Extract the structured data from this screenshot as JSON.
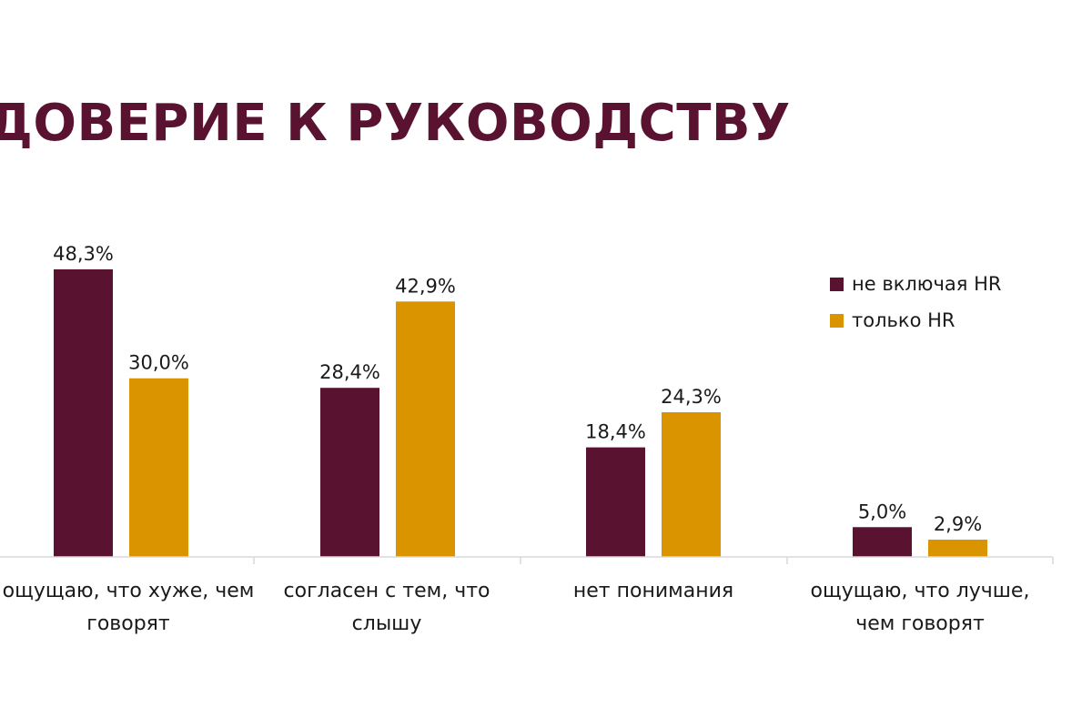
{
  "colors": {
    "title": "#5A1231",
    "series1": "#5A1231",
    "series2": "#D99400",
    "axis": "#d9d9d9"
  },
  "chart_data": {
    "type": "bar",
    "title": "ДОВЕРИЕ К РУКОВОДСТВУ",
    "categories": [
      "ощущаю, что хуже, чем говорят",
      "согласен с тем, что слышу",
      "нет понимания",
      "ощущаю, что лучше, чем говорят"
    ],
    "series": [
      {
        "name": "не включая HR",
        "values": [
          48.3,
          28.4,
          18.4,
          5.0
        ],
        "labels": [
          "48,3%",
          "28,4%",
          "18,4%",
          "5,0%"
        ]
      },
      {
        "name": "только HR",
        "values": [
          30.0,
          42.9,
          24.3,
          2.9
        ],
        "labels": [
          "30,0%",
          "42,9%",
          "24,3%",
          "2,9%"
        ]
      }
    ],
    "ylim": [
      0,
      48.3
    ],
    "grid": false,
    "legend_position": "right"
  }
}
